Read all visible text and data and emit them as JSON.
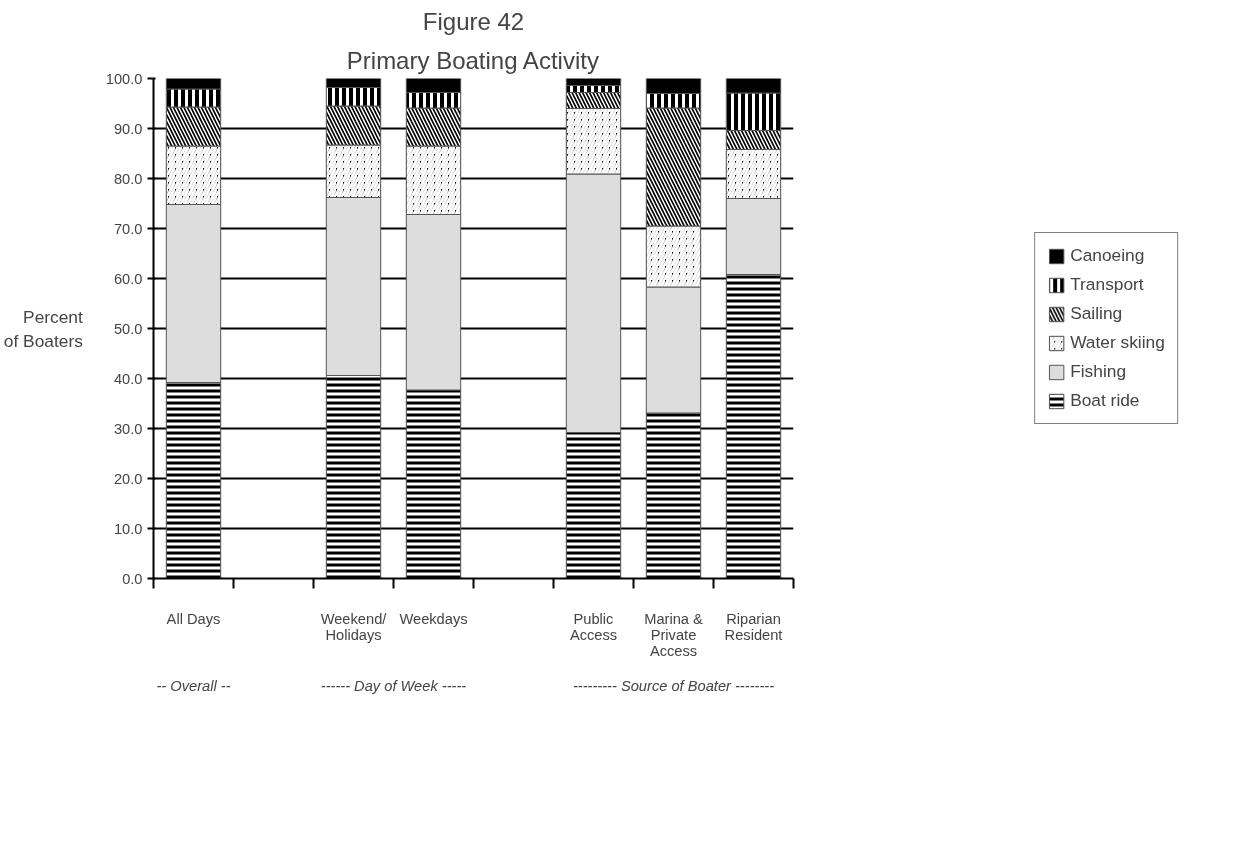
{
  "chart_data": {
    "type": "bar",
    "title": "Figure 42",
    "subtitle": "Primary Boating Activity",
    "ylabel": "Percent\nof Boaters",
    "categories": [
      "All Days",
      null,
      "Weekend/\nHolidays",
      "Weekdays",
      null,
      "Public\nAccess",
      "Marina &\nPrivate\nAccess",
      "Riparian\nResident"
    ],
    "stacked": true,
    "series": [
      {
        "name": "Boat ride",
        "color": "#000000",
        "values": [
          39.2,
          null,
          40.6,
          37.7,
          null,
          29.2,
          33.1,
          60.8
        ]
      },
      {
        "name": "Fishing",
        "color": "#dddddd",
        "values": [
          35.6,
          null,
          35.6,
          35.1,
          null,
          51.7,
          25.2,
          15.2
        ]
      },
      {
        "name": "Water skiing",
        "color": "#000000",
        "values": [
          11.7,
          null,
          10.5,
          13.7,
          null,
          13.1,
          12.2,
          9.8
        ]
      },
      {
        "name": "Sailing",
        "color": "#000000",
        "values": [
          7.8,
          null,
          7.8,
          7.6,
          null,
          3.2,
          23.6,
          3.8
        ]
      },
      {
        "name": "Transport",
        "color": "#000000",
        "values": [
          3.6,
          null,
          3.7,
          3.1,
          null,
          1.4,
          2.9,
          7.5
        ]
      },
      {
        "name": "Canoeing",
        "color": "#000000",
        "values": [
          2.1,
          null,
          1.8,
          2.8,
          null,
          1.4,
          3.0,
          2.9
        ]
      }
    ],
    "ylim": [
      0,
      100
    ],
    "yticks": [
      {
        "value": 0,
        "label": "0.0"
      },
      {
        "value": 10,
        "label": "10.0"
      },
      {
        "value": 20,
        "label": "20.0"
      },
      {
        "value": 30,
        "label": "30.0"
      },
      {
        "value": 40,
        "label": "40.0"
      },
      {
        "value": 50,
        "label": "50.0"
      },
      {
        "value": 60,
        "label": "60.0"
      },
      {
        "value": 70,
        "label": "70.0"
      },
      {
        "value": 80,
        "label": "80.0"
      },
      {
        "value": 90,
        "label": "90.0"
      },
      {
        "value": 100,
        "label": "100.0"
      }
    ],
    "grid": "y",
    "legend": "right",
    "annotations": [
      "-- Overall --",
      "------ Day of Week -----",
      "--------- Source of Boater --------"
    ]
  }
}
